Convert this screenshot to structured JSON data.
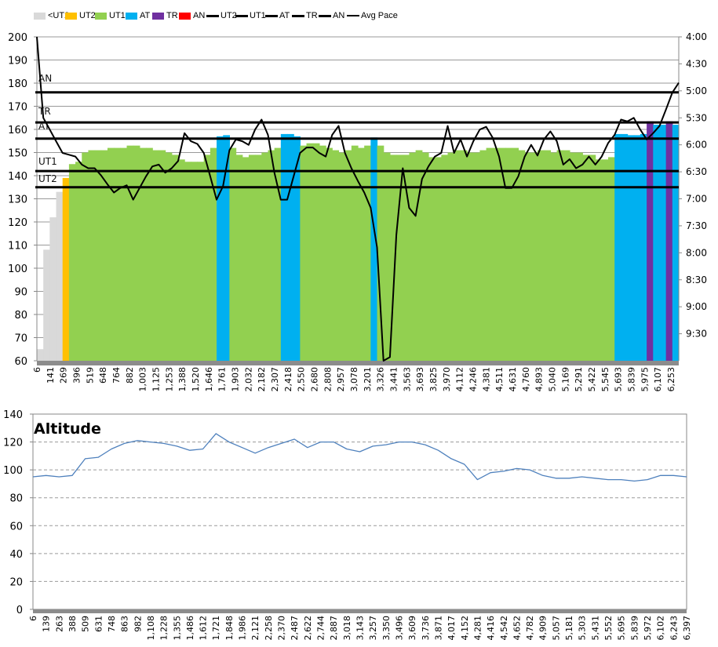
{
  "chart_data": [
    {
      "type": "bar+line",
      "legend": {
        "placement": "top",
        "entries": [
          {
            "label": "<UT2",
            "kind": "bar",
            "color": "#d9d9d9"
          },
          {
            "label": "UT2",
            "kind": "bar",
            "color": "#ffc000"
          },
          {
            "label": "UT1",
            "kind": "bar",
            "color": "#92d050"
          },
          {
            "label": "AT",
            "kind": "bar",
            "color": "#00b0f0"
          },
          {
            "label": "TR",
            "kind": "bar",
            "color": "#7030a0"
          },
          {
            "label": "AN",
            "kind": "bar",
            "color": "#ff0000"
          },
          {
            "label": "UT2",
            "kind": "line",
            "color": "#000000"
          },
          {
            "label": "UT1",
            "kind": "line",
            "color": "#000000"
          },
          {
            "label": "AT",
            "kind": "line",
            "color": "#000000"
          },
          {
            "label": "TR",
            "kind": "line",
            "color": "#000000"
          },
          {
            "label": "AN",
            "kind": "line",
            "color": "#000000"
          },
          {
            "label": "Avg Pace",
            "kind": "thin-line",
            "color": "#000000"
          }
        ]
      },
      "y_left": {
        "range": [
          60,
          200
        ],
        "ticks": [
          "200",
          "190",
          "180",
          "170",
          "160",
          "150",
          "140",
          "130",
          "120",
          "110",
          "100",
          "90",
          "80",
          "70",
          "60"
        ]
      },
      "y_right": {
        "range": [
          "4:00",
          "10:00"
        ],
        "inverted": true,
        "ticks": [
          "4:00",
          "4:30",
          "5:00",
          "5:30",
          "6:00",
          "6:30",
          "7:00",
          "7:30",
          "8:00",
          "8:30",
          "9:00",
          "9:30"
        ]
      },
      "x_ticks": [
        "6",
        "141",
        "269",
        "396",
        "519",
        "648",
        "764",
        "882",
        "1,003",
        "1,125",
        "1,253",
        "1,388",
        "1,520",
        "1,646",
        "1,761",
        "1,903",
        "2,032",
        "2,182",
        "2,307",
        "2,418",
        "2,550",
        "2,680",
        "2,808",
        "2,957",
        "3,078",
        "3,201",
        "3,326",
        "3,441",
        "3,563",
        "3,693",
        "3,825",
        "3,970",
        "4,112",
        "4,246",
        "4,381",
        "4,511",
        "4,631",
        "4,760",
        "4,893",
        "5,040",
        "5,169",
        "5,291",
        "5,422",
        "5,545",
        "5,693",
        "5,839",
        "5,975",
        "6,107",
        "6,253"
      ],
      "grid": "horizontal",
      "zone_lines": [
        {
          "label": "AN",
          "hr": 176
        },
        {
          "label": "TR",
          "hr": 163
        },
        {
          "label": "AT",
          "hr": 156
        },
        {
          "label": "UT1",
          "hr": 142
        },
        {
          "label": "UT2",
          "hr": 135
        }
      ],
      "heart_rate": [
        65,
        108,
        122,
        133,
        139,
        145,
        146,
        150,
        151,
        151,
        151,
        152,
        152,
        152,
        153,
        153,
        152,
        152,
        151,
        151,
        150,
        149,
        147,
        146,
        146,
        146,
        149,
        152,
        157,
        157.5,
        152,
        149,
        148,
        149,
        149,
        150,
        151,
        152,
        158,
        158,
        157,
        153,
        154,
        154,
        153,
        152,
        151,
        150,
        151,
        153,
        152,
        153,
        156.5,
        153,
        150,
        149,
        149,
        149,
        150,
        151,
        150,
        148,
        148,
        149,
        150,
        151,
        151,
        150,
        150,
        151,
        152,
        152,
        152,
        152,
        152,
        151,
        150,
        150,
        151,
        151,
        150,
        151,
        151,
        150,
        150,
        149,
        149,
        147,
        147,
        148,
        158,
        158,
        157.5,
        157.5,
        158,
        163.5,
        162,
        162,
        163.5,
        162
      ],
      "avg_pace": [
        "4:00",
        "5:30",
        "5:43",
        "5:56",
        "6:09",
        "6:11",
        "6:13",
        "6:22",
        "6:26",
        "6:26",
        "6:34",
        "6:44",
        "6:53",
        "6:48",
        "6:45",
        "7:01",
        "6:48",
        "6:35",
        "6:24",
        "6:22",
        "6:31",
        "6:26",
        "6:18",
        "5:47",
        "5:56",
        "5:59",
        "6:09",
        "6:35",
        "7:01",
        "6:46",
        "6:06",
        "5:54",
        "5:56",
        "6:00",
        "5:43",
        "5:32",
        "5:49",
        "6:31",
        "7:01",
        "7:01",
        "6:35",
        "6:09",
        "6:03",
        "6:03",
        "6:09",
        "6:13",
        "5:49",
        "5:39",
        "6:09",
        "6:26",
        "6:40",
        "6:53",
        "7:10",
        "7:54",
        "10:00",
        "9:56",
        "7:40",
        "6:26",
        "7:10",
        "7:19",
        "6:38",
        "6:24",
        "6:13",
        "6:09",
        "5:39",
        "6:09",
        "5:54",
        "6:13",
        "5:56",
        "5:43",
        "5:40",
        "5:52",
        "6:13",
        "6:48",
        "6:48",
        "6:35",
        "6:13",
        "6:00",
        "6:12",
        "5:54",
        "5:45",
        "5:56",
        "6:22",
        "6:16",
        "6:26",
        "6:22",
        "6:13",
        "6:22",
        "6:13",
        "5:58",
        "5:49",
        "5:32",
        "5:34",
        "5:30",
        "5:43",
        "5:54",
        "5:47",
        "5:39",
        "5:21",
        "5:02",
        "4:51"
      ]
    },
    {
      "type": "line",
      "title": "Altitude",
      "ylim": [
        0,
        140
      ],
      "y_ticks": [
        "140",
        "120",
        "100",
        "80",
        "60",
        "40",
        "20",
        "0"
      ],
      "grid": "horizontal-dashed",
      "color": "#4f81bd",
      "x_ticks": [
        "6",
        "139",
        "263",
        "388",
        "509",
        "631",
        "748",
        "863",
        "982",
        "1,108",
        "1,228",
        "1,355",
        "1,486",
        "1,612",
        "1,721",
        "1,848",
        "1,986",
        "2,121",
        "2,258",
        "2,370",
        "2,487",
        "2,622",
        "2,744",
        "2,887",
        "3,018",
        "3,143",
        "3,257",
        "3,350",
        "3,496",
        "3,609",
        "3,736",
        "3,871",
        "4,017",
        "4,152",
        "4,281",
        "4,416",
        "4,542",
        "4,652",
        "4,782",
        "4,909",
        "5,057",
        "5,181",
        "5,303",
        "5,431",
        "5,552",
        "5,695",
        "5,839",
        "5,972",
        "6,102",
        "6,243",
        "6,397"
      ],
      "values": [
        95,
        96,
        95,
        96,
        108,
        109,
        115,
        119,
        121,
        120,
        119,
        117,
        114,
        115,
        126,
        120,
        116,
        112,
        116,
        119,
        122,
        116,
        120,
        120,
        115,
        113,
        117,
        118,
        120,
        120,
        118,
        114,
        108,
        104,
        93,
        98,
        99,
        101,
        100,
        96,
        94,
        94,
        95,
        94,
        93,
        93,
        92,
        93,
        96,
        96,
        95
      ]
    }
  ]
}
